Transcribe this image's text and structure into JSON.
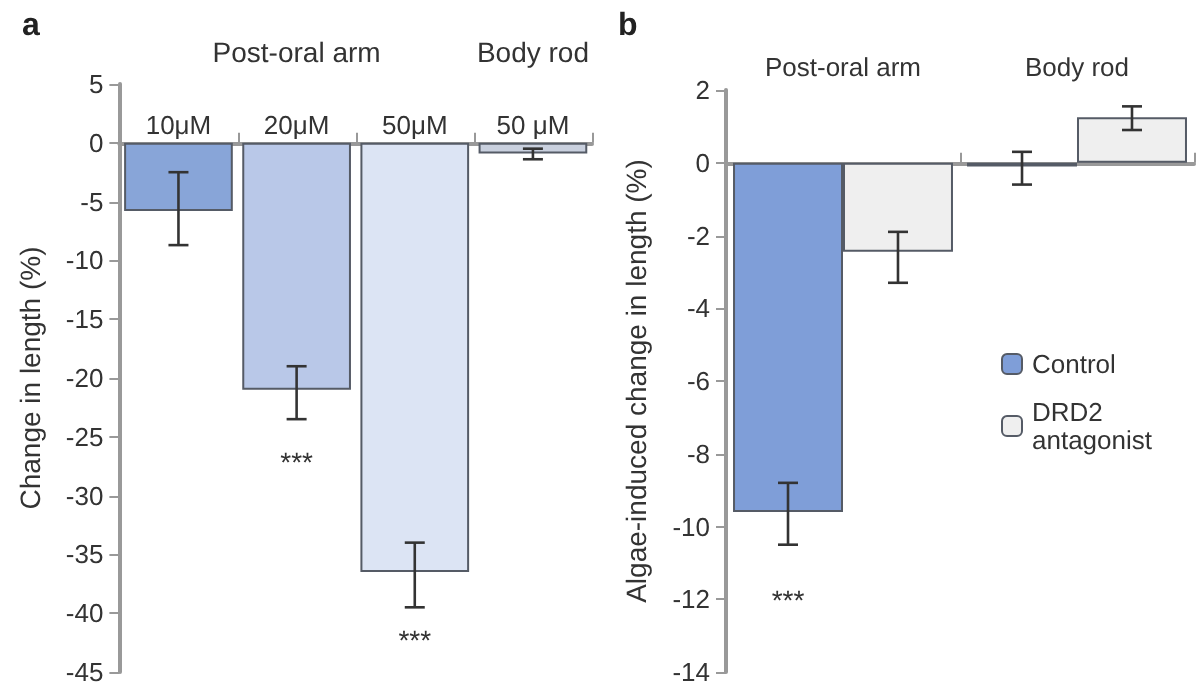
{
  "chart_data": [
    {
      "type": "bar",
      "title": "a",
      "ylabel": "Change in length (%)",
      "categories": [
        "10μM",
        "20μM",
        "50μM",
        "50 μM"
      ],
      "values": [
        -5.8,
        -21,
        -36.5,
        -0.9
      ],
      "colors": [
        "#88a5d8",
        "#b9c8e8",
        "#dce4f4",
        "#c9d0de"
      ],
      "errors": [
        [
          -8.7,
          -2.5
        ],
        [
          -23.5,
          -19
        ],
        [
          -39.5,
          -34
        ],
        [
          -1.4,
          -0.5
        ]
      ],
      "ylim": [
        -45,
        5
      ],
      "yticks": [
        5,
        0,
        -5,
        -10,
        -15,
        -20,
        -25,
        -30,
        -35,
        -40,
        -45
      ],
      "legend": false,
      "annotations": [
        "Post-oral arm",
        "Body rod",
        "***",
        "***"
      ]
    },
    {
      "type": "bar",
      "title": "b",
      "ylabel": "Algae-induced change in length (%)",
      "categories": [
        "Post-oral arm",
        "Body rod"
      ],
      "series": [
        {
          "name": "Control",
          "color": "#7f9ed8",
          "values": [
            -9.6,
            -0.1
          ],
          "errors": [
            [
              -10.5,
              -8.8
            ],
            [
              -0.6,
              0.3
            ]
          ]
        },
        {
          "name": "DRD2 antagonist",
          "color": "#efefef",
          "values": [
            -2.45,
            1.25
          ],
          "errors": [
            [
              -3.3,
              -1.9
            ],
            [
              0.9,
              1.55
            ]
          ]
        }
      ],
      "ylim": [
        -14,
        2
      ],
      "yticks": [
        2,
        0,
        -2,
        -4,
        -6,
        -8,
        -10,
        -12,
        -14
      ],
      "legend": "right",
      "annotations": [
        "***"
      ]
    }
  ]
}
